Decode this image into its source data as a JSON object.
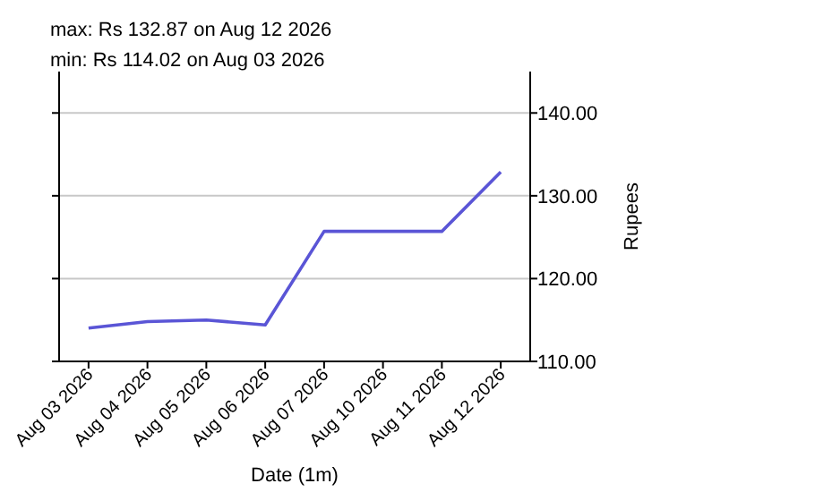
{
  "chart_data": {
    "type": "line",
    "annotations": [
      "max: Rs 132.87 on Aug 12 2026",
      "min: Rs 114.02 on Aug 03 2026"
    ],
    "xlabel": "Date (1m)",
    "ylabel": "Rupees",
    "categories": [
      "Aug 03 2026",
      "Aug 04 2026",
      "Aug 05 2026",
      "Aug 06 2026",
      "Aug 07 2026",
      "Aug 10 2026",
      "Aug 11 2026",
      "Aug 12 2026"
    ],
    "series": [
      {
        "color": "#5a55d6",
        "values": [
          114.02,
          114.8,
          115.0,
          114.4,
          125.7,
          125.7,
          125.7,
          132.87
        ]
      }
    ],
    "ylim": [
      110,
      145
    ],
    "yticks": [
      {
        "value": 110,
        "label": "110.00"
      },
      {
        "value": 120,
        "label": "120.00"
      },
      {
        "value": 130,
        "label": "130.00"
      },
      {
        "value": 140,
        "label": "140.00"
      }
    ],
    "grid": "y"
  }
}
